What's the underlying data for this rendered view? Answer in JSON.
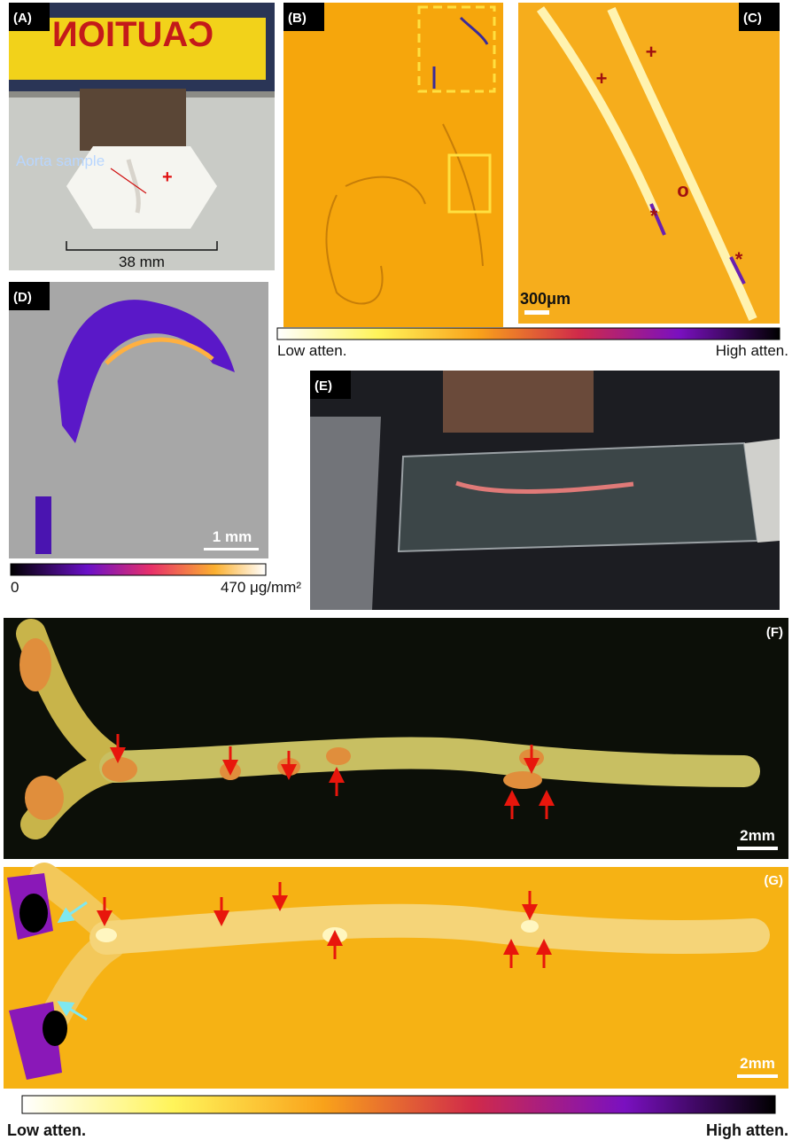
{
  "panels": {
    "A": {
      "label": "(A)",
      "sign": "CAUTION",
      "annotation": "Aorta sample",
      "marker": "+",
      "scale": "38 mm"
    },
    "B": {
      "label": "(B)"
    },
    "C": {
      "label": "(C)",
      "markers": [
        "+",
        "+",
        "o",
        "*",
        "*"
      ],
      "scale": "300μm"
    },
    "D": {
      "label": "(D)",
      "scale": "1 mm",
      "colorbar": {
        "min": "0",
        "max": "470 μg/mm²"
      }
    },
    "E": {
      "label": "(E)"
    },
    "F": {
      "label": "(F)",
      "scale": "2mm"
    },
    "G": {
      "label": "(G)",
      "scale": "2mm"
    }
  },
  "colorbars": {
    "top": {
      "low": "Low atten.",
      "high": "High atten."
    },
    "bottom": {
      "low": "Low atten.",
      "high": "High atten."
    }
  }
}
